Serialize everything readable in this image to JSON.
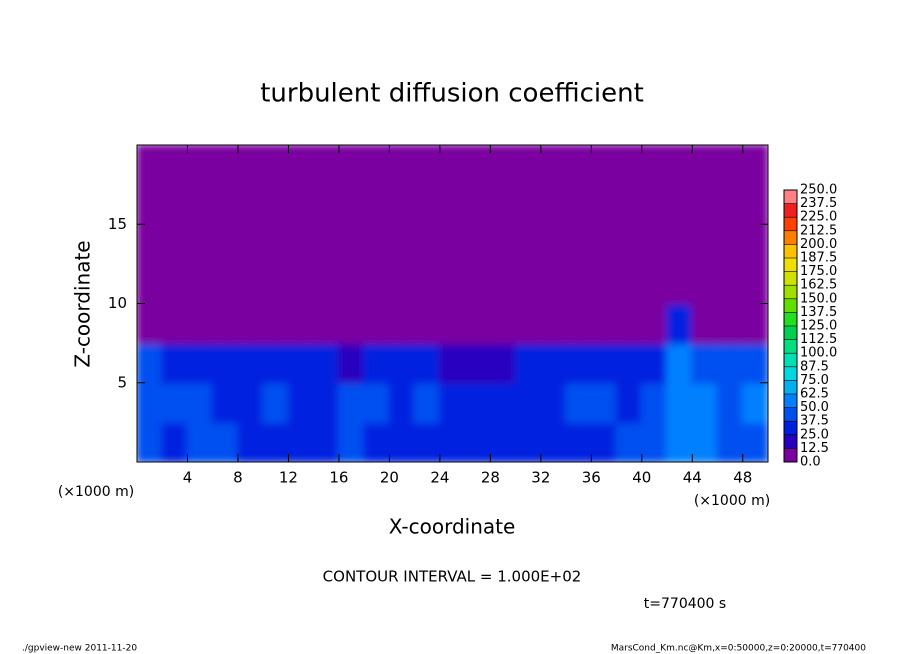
{
  "chart_data": {
    "type": "heatmap",
    "title": "turbulent diffusion coefficient",
    "x_label": "X-coordinate",
    "y_label": "Z-coordinate",
    "x_unit": "(×1000 m)",
    "y_unit": "(×1000 m)",
    "xlim": [
      0,
      50
    ],
    "ylim": [
      0,
      20
    ],
    "xticks": [
      4,
      8,
      12,
      16,
      20,
      24,
      28,
      32,
      36,
      40,
      44,
      48
    ],
    "yticks": [
      5,
      10,
      15
    ],
    "x": [
      1,
      3,
      5,
      7,
      9,
      11,
      13,
      15,
      17,
      19,
      21,
      23,
      25,
      27,
      29,
      31,
      33,
      35,
      37,
      39,
      41,
      43,
      45,
      47,
      49
    ],
    "y": [
      1.25,
      3.75,
      6.25,
      8.75,
      11.25,
      13.75,
      16.25,
      18.75
    ],
    "values": [
      [
        40,
        35,
        45,
        40,
        35,
        30,
        30,
        35,
        40,
        35,
        30,
        35,
        30,
        25,
        30,
        30,
        30,
        35,
        35,
        40,
        40,
        50,
        55,
        45,
        40
      ],
      [
        45,
        40,
        40,
        35,
        35,
        40,
        30,
        30,
        40,
        45,
        35,
        40,
        30,
        30,
        25,
        30,
        35,
        40,
        40,
        35,
        40,
        55,
        55,
        45,
        50
      ],
      [
        40,
        35,
        35,
        30,
        30,
        30,
        30,
        25,
        20,
        30,
        35,
        30,
        20,
        15,
        20,
        25,
        25,
        30,
        30,
        35,
        35,
        50,
        45,
        40,
        45
      ],
      [
        0,
        0,
        0,
        0,
        0,
        0,
        0,
        0,
        0,
        0,
        0,
        0,
        0,
        0,
        0,
        0,
        0,
        0,
        0,
        0,
        0,
        30,
        10,
        0,
        0
      ],
      [
        0,
        0,
        0,
        0,
        0,
        0,
        0,
        0,
        0,
        0,
        0,
        0,
        0,
        0,
        0,
        0,
        0,
        0,
        0,
        0,
        0,
        0,
        0,
        0,
        0
      ],
      [
        0,
        0,
        0,
        0,
        0,
        0,
        0,
        0,
        0,
        0,
        0,
        0,
        0,
        0,
        0,
        0,
        0,
        0,
        0,
        0,
        0,
        0,
        0,
        0,
        0
      ],
      [
        0,
        0,
        0,
        0,
        0,
        0,
        0,
        0,
        0,
        0,
        0,
        0,
        0,
        0,
        0,
        0,
        0,
        0,
        0,
        0,
        0,
        0,
        0,
        0,
        0
      ],
      [
        0,
        0,
        0,
        0,
        0,
        0,
        0,
        0,
        0,
        0,
        0,
        0,
        0,
        0,
        0,
        0,
        0,
        0,
        0,
        0,
        0,
        0,
        0,
        0,
        0
      ]
    ],
    "colorbar_levels": [
      {
        "value": 0,
        "label": "0.0"
      },
      12.5,
      {
        "value": 25,
        "label": "25.0"
      },
      37.5,
      {
        "value": 50,
        "label": "50.0"
      },
      62.5,
      {
        "value": 75,
        "label": "75.0"
      },
      87.5,
      {
        "value": 100,
        "label": "100.0"
      },
      112.5,
      {
        "value": 125,
        "label": "125.0"
      },
      137.5,
      {
        "value": 150,
        "label": "150.0"
      },
      162.5,
      {
        "value": 175,
        "label": "175.0"
      },
      187.5,
      {
        "value": 200,
        "label": "200.0"
      },
      212.5,
      {
        "value": 225,
        "label": "225.0"
      },
      237.5,
      {
        "value": 250,
        "label": "250.0"
      }
    ],
    "colorbar_colors": [
      "#7a00a0",
      "#2a00c0",
      "#0020e0",
      "#0050f0",
      "#0080ff",
      "#00b0f0",
      "#00d8e0",
      "#00e0b0",
      "#00e080",
      "#00d050",
      "#20e020",
      "#60e000",
      "#a0e000",
      "#d0e000",
      "#f0e000",
      "#ffc000",
      "#ff8000",
      "#ff4000",
      "#f02020",
      "#ff8080"
    ],
    "annotation": "CONTOUR INTERVAL = 1.000E+02",
    "time_label": "t=770400 s",
    "footer_left": "./gpview-new  2011-11-20",
    "footer_right": "MarsCond_Km.nc@Km,x=0:50000,z=0:20000,t=770400"
  }
}
